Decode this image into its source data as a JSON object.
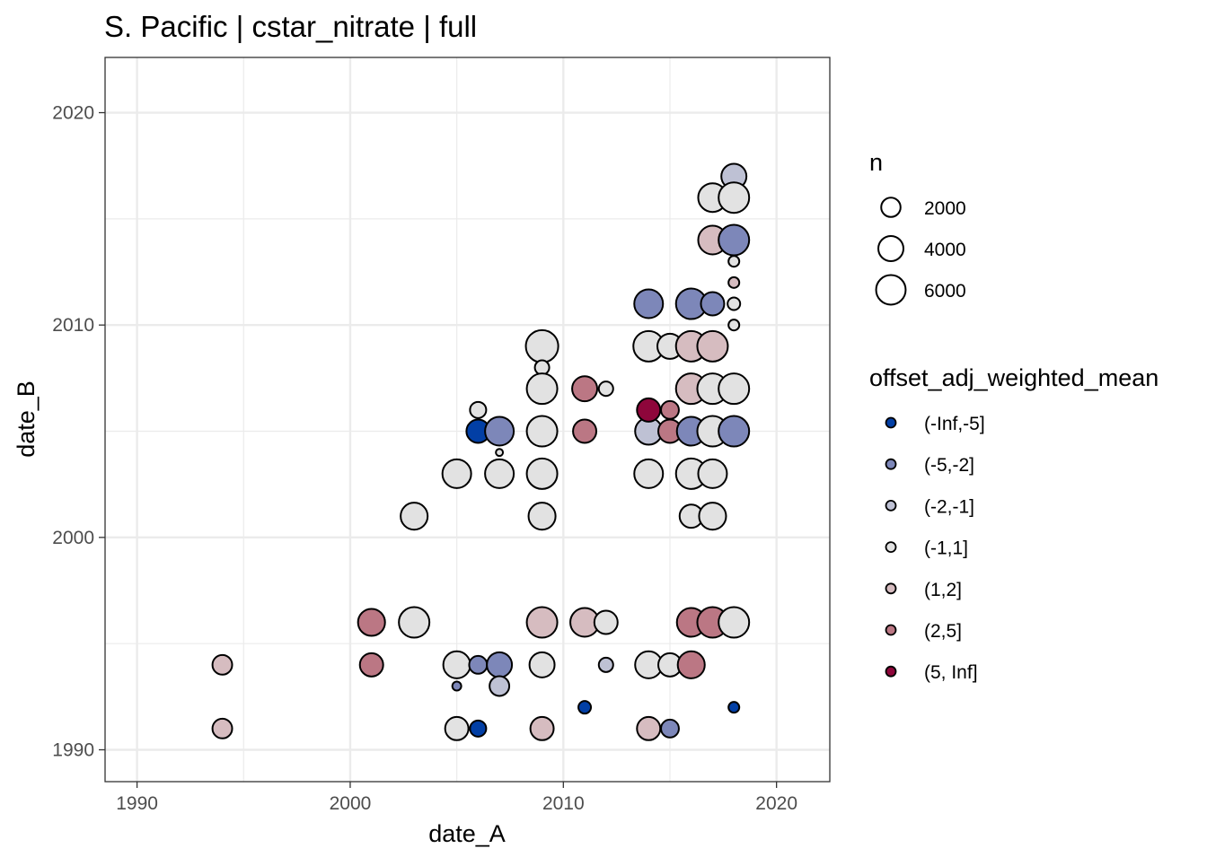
{
  "chart_data": {
    "type": "scatter",
    "title": "S. Pacific | cstar_nitrate | full",
    "xlabel": "date_A",
    "ylabel": "date_B",
    "xlim": [
      1988.5,
      2022.5
    ],
    "ylim": [
      1988.5,
      2022.6
    ],
    "xticks": [
      1990,
      2000,
      2010,
      2020
    ],
    "yticks": [
      1990,
      2000,
      2010,
      2020
    ],
    "grid": true,
    "legend_placement": "right",
    "size_legend": {
      "title": "n",
      "values": [
        2000,
        4000,
        6000
      ]
    },
    "color_legend": {
      "title": "offset_adj_weighted_mean",
      "categories": [
        "(-Inf,-5]",
        "(-5,-2]",
        "(-2,-1]",
        "(-1,1]",
        "(1,2]",
        "(2,5]",
        "(5, Inf]"
      ],
      "colors": [
        "#023FA5",
        "#7D87B9",
        "#BEC1D4",
        "#E2E2E2",
        "#D6BCC0",
        "#BB7784",
        "#8E063B"
      ]
    },
    "points": [
      [
        1994,
        1994,
        4,
        2100
      ],
      [
        1994,
        1991,
        4,
        2100
      ],
      [
        2001,
        1996,
        5,
        4800
      ],
      [
        2001,
        1994,
        5,
        3300
      ],
      [
        2003,
        1996,
        3,
        6500
      ],
      [
        2003,
        2001,
        3,
        4800
      ],
      [
        2005,
        2003,
        3,
        5600
      ],
      [
        2005,
        1994,
        3,
        4800
      ],
      [
        2005,
        1993,
        1,
        130
      ],
      [
        2005,
        1991,
        3,
        3300
      ],
      [
        2006,
        2006,
        3,
        1200
      ],
      [
        2006,
        2005,
        0,
        3300
      ],
      [
        2006,
        1994,
        1,
        1600
      ],
      [
        2006,
        1991,
        0,
        1200
      ],
      [
        2007,
        2005,
        1,
        5600
      ],
      [
        2007,
        2004,
        3,
        30
      ],
      [
        2007,
        2003,
        3,
        5600
      ],
      [
        2007,
        1994,
        1,
        4000
      ],
      [
        2007,
        1993,
        2,
        2100
      ],
      [
        2009,
        2009,
        3,
        7500
      ],
      [
        2009,
        2008,
        3,
        830
      ],
      [
        2009,
        2007,
        3,
        6500
      ],
      [
        2009,
        2005,
        3,
        6500
      ],
      [
        2009,
        2003,
        3,
        6500
      ],
      [
        2009,
        2001,
        3,
        4800
      ],
      [
        2009,
        1996,
        4,
        6500
      ],
      [
        2009,
        1994,
        3,
        4000
      ],
      [
        2009,
        1991,
        4,
        3300
      ],
      [
        2011,
        2007,
        5,
        4000
      ],
      [
        2011,
        2005,
        5,
        3300
      ],
      [
        2011,
        1996,
        4,
        5600
      ],
      [
        2011,
        1992,
        0,
        530
      ],
      [
        2012,
        2007,
        3,
        830
      ],
      [
        2012,
        1996,
        3,
        3300
      ],
      [
        2012,
        1994,
        2,
        830
      ],
      [
        2014,
        2011,
        1,
        5600
      ],
      [
        2014,
        2009,
        3,
        6500
      ],
      [
        2014,
        2005,
        2,
        4800
      ],
      [
        2014,
        2003,
        3,
        5600
      ],
      [
        2014,
        1994,
        3,
        4800
      ],
      [
        2014,
        1991,
        4,
        3300
      ],
      [
        2015,
        2009,
        3,
        4000
      ],
      [
        2015,
        2005,
        5,
        3300
      ],
      [
        2015,
        1994,
        3,
        3300
      ],
      [
        2015,
        1991,
        1,
        1600
      ],
      [
        2014,
        2006,
        6,
        3300
      ],
      [
        2015,
        2006,
        5,
        1600
      ],
      [
        2016,
        2011,
        1,
        6500
      ],
      [
        2016,
        2009,
        4,
        6500
      ],
      [
        2016,
        2007,
        4,
        6500
      ],
      [
        2016,
        2005,
        1,
        5600
      ],
      [
        2016,
        2003,
        3,
        6500
      ],
      [
        2016,
        2001,
        3,
        3300
      ],
      [
        2016,
        1996,
        5,
        5600
      ],
      [
        2016,
        1994,
        5,
        4800
      ],
      [
        2017,
        2016,
        3,
        5600
      ],
      [
        2017,
        2014,
        4,
        5600
      ],
      [
        2017,
        2011,
        1,
        3300
      ],
      [
        2017,
        2009,
        4,
        6500
      ],
      [
        2017,
        2007,
        3,
        6500
      ],
      [
        2017,
        2005,
        3,
        6500
      ],
      [
        2017,
        2003,
        3,
        5600
      ],
      [
        2017,
        2001,
        3,
        4800
      ],
      [
        2017,
        1996,
        5,
        6500
      ],
      [
        2018,
        2017,
        2,
        4000
      ],
      [
        2018,
        2016,
        3,
        6500
      ],
      [
        2018,
        2014,
        1,
        6500
      ],
      [
        2018,
        2013,
        3,
        300
      ],
      [
        2018,
        2012,
        4,
        300
      ],
      [
        2018,
        2011,
        3,
        530
      ],
      [
        2018,
        2010,
        3,
        300
      ],
      [
        2018,
        2007,
        3,
        6500
      ],
      [
        2018,
        2005,
        1,
        6500
      ],
      [
        2018,
        1996,
        3,
        6500
      ],
      [
        2018,
        1992,
        0,
        300
      ]
    ]
  }
}
